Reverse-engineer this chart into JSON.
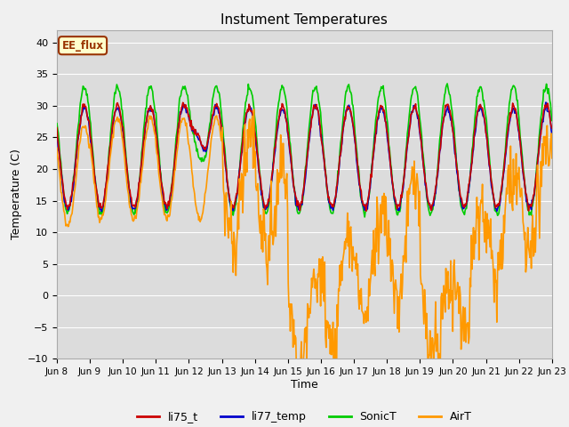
{
  "title": "Instument Temperatures",
  "xlabel": "Time",
  "ylabel": "Temperature (C)",
  "ylim": [
    -10,
    42
  ],
  "yticks": [
    -10,
    -5,
    0,
    5,
    10,
    15,
    20,
    25,
    30,
    35,
    40
  ],
  "line_colors": {
    "li75_t": "#cc0000",
    "li77_temp": "#0000cc",
    "SonicT": "#00cc00",
    "AirT": "#ff9900"
  },
  "bg_color": "#dcdcdc",
  "grid_color": "#ffffff",
  "annotation_text": "EE_flux",
  "annotation_bg": "#ffffcc",
  "annotation_border": "#993300",
  "n_days": 15,
  "start_day": 8,
  "fig_bg": "#f0f0f0"
}
